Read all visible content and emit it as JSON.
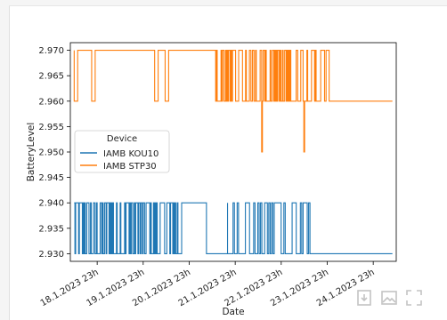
{
  "chart_data": {
    "type": "line",
    "xlabel": "Date",
    "ylabel": "BatteryLevel",
    "x_tick_labels": [
      "18.1.2023 23h",
      "19.1.2023 23h",
      "20.1.2023 23h",
      "21.1.2023 23h",
      "22.1.2023 23h",
      "23.1.2023 23h",
      "24.1.2023 23h"
    ],
    "xlim": [
      "2023-01-18T09:00",
      "2023-01-25T11:00"
    ],
    "y_ticks": [
      "2.930",
      "2.935",
      "2.940",
      "2.945",
      "2.950",
      "2.955",
      "2.960",
      "2.965",
      "2.970"
    ],
    "ylim": [
      2.9285,
      2.9715
    ],
    "grid": false,
    "legend": {
      "title": "Device",
      "placement": "center-left"
    },
    "series": [
      {
        "name": "IAMB KOU10",
        "color": "#1f77b4",
        "levels": [
          2.93,
          2.94
        ],
        "segments": [
          {
            "start": "2023-01-18T11:00",
            "end": "2023-01-20T21:00",
            "behavior": "frequent toggling between 2.930 and 2.940"
          },
          {
            "start": "2023-01-20T21:00",
            "end": "2023-01-21T08:00",
            "value": 2.94
          },
          {
            "start": "2023-01-21T08:00",
            "end": "2023-01-21T19:00",
            "value": 2.93
          },
          {
            "start": "2023-01-21T19:00",
            "end": "2023-01-23T14:00",
            "behavior": "intermittent toggling between 2.930 and 2.940"
          },
          {
            "start": "2023-01-23T14:00",
            "end": "2023-01-25T09:00",
            "value": 2.93
          }
        ]
      },
      {
        "name": "IAMB STP30",
        "color": "#ff7f0e",
        "levels": [
          2.96,
          2.97
        ],
        "dips_to": 2.95,
        "segments": [
          {
            "start": "2023-01-18T11:00",
            "end": "2023-01-21T12:00",
            "value": 2.97,
            "behavior": "occasional drops to 2.960"
          },
          {
            "start": "2023-01-21T12:00",
            "end": "2023-01-24T00:00",
            "behavior": "frequent toggling between 2.960 and 2.970, brief dips to 2.950"
          },
          {
            "start": "2023-01-24T00:00",
            "end": "2023-01-25T09:00",
            "value": 2.96
          }
        ]
      }
    ]
  },
  "toolbar": {
    "icons": [
      "download-icon",
      "image-icon",
      "expand-icon"
    ]
  }
}
